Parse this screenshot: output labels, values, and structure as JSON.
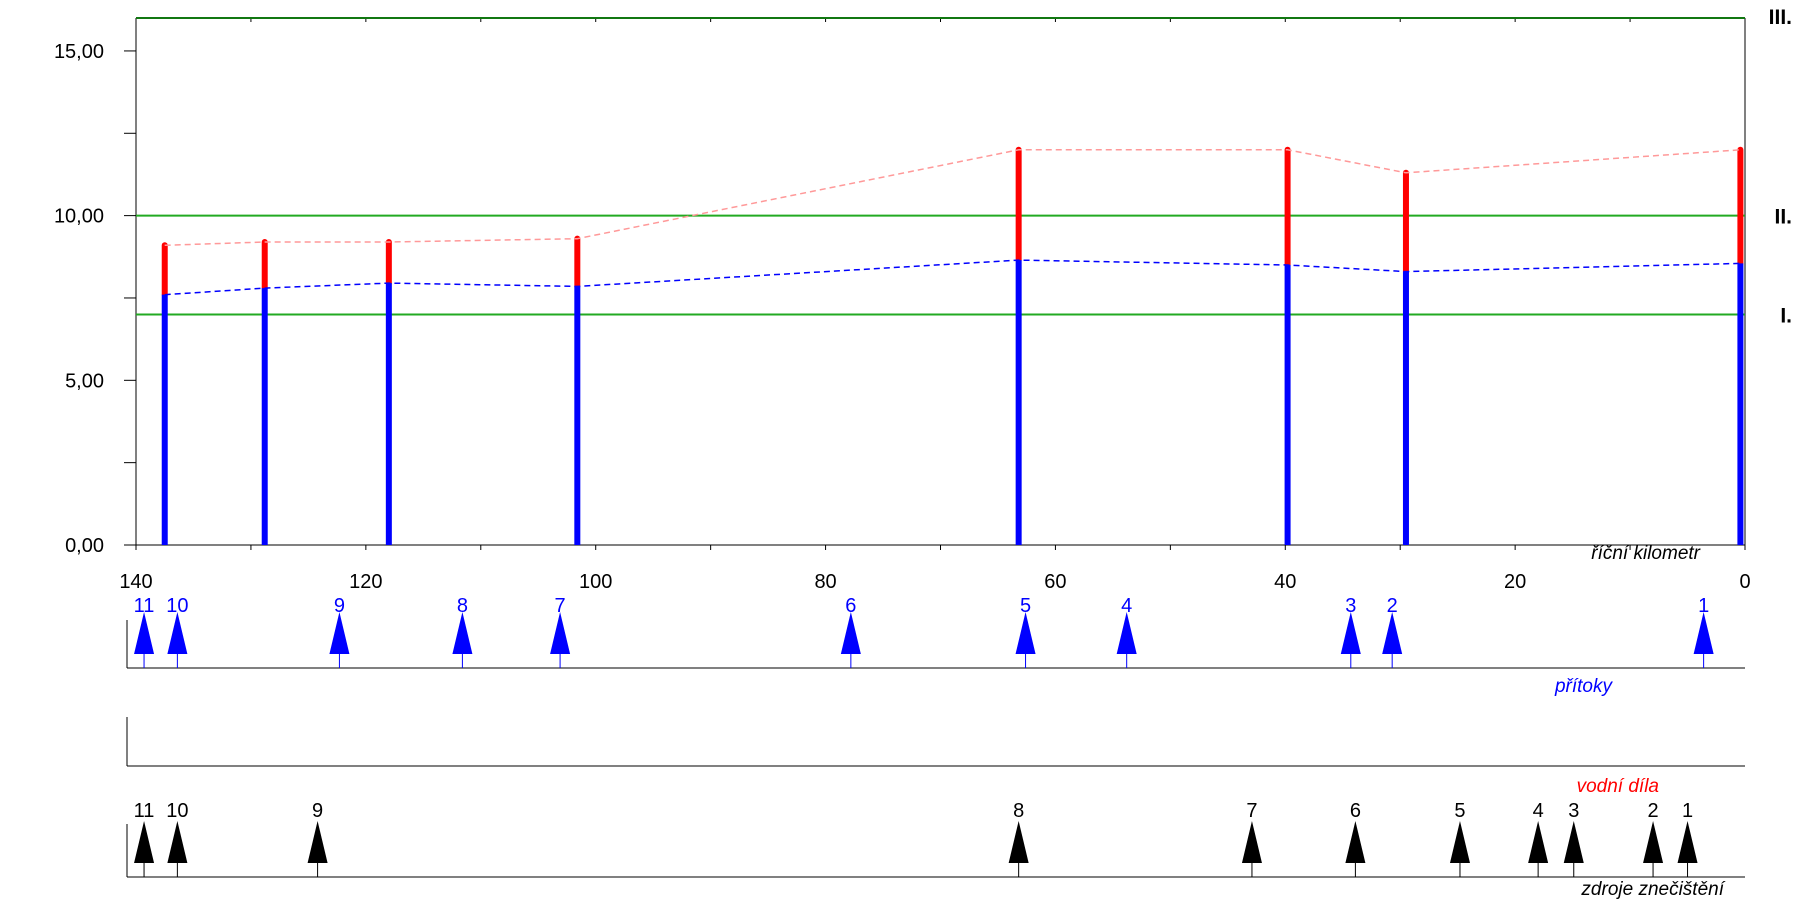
{
  "chart_data": {
    "type": "bar",
    "y_ticks": [
      "0,00",
      "5,00",
      "10,00",
      "15,00"
    ],
    "y_tick_values": [
      0,
      5,
      10,
      15
    ],
    "ylim": [
      0,
      16
    ],
    "x_ticks": [
      "140",
      "120",
      "100",
      "80",
      "60",
      "40",
      "20",
      "0"
    ],
    "x_tick_values": [
      140,
      120,
      100,
      80,
      60,
      40,
      20,
      0
    ],
    "xlim": [
      140,
      0
    ],
    "xlabel": "říční kilometr",
    "ylabel": "",
    "class_limits": [
      {
        "label": "I.",
        "value": 7,
        "color": "#22aa22"
      },
      {
        "label": "II.",
        "value": 10,
        "color": "#22aa22"
      },
      {
        "label": "III.",
        "value": 16,
        "color": "#117711"
      }
    ],
    "series": [
      {
        "color": "#0000ff",
        "points": [
          {
            "km": 137.5,
            "value": 7.6
          },
          {
            "km": 128.8,
            "value": 7.8
          },
          {
            "km": 118.0,
            "value": 7.95
          },
          {
            "km": 101.6,
            "value": 7.85
          },
          {
            "km": 63.2,
            "value": 8.65
          },
          {
            "km": 39.8,
            "value": 8.5
          },
          {
            "km": 29.5,
            "value": 8.3
          },
          {
            "km": 0.4,
            "value": 8.55
          }
        ]
      },
      {
        "color": "#ff0000",
        "points": [
          {
            "km": 137.5,
            "value": 9.1
          },
          {
            "km": 128.8,
            "value": 9.2
          },
          {
            "km": 118.0,
            "value": 9.2
          },
          {
            "km": 101.6,
            "value": 9.3
          },
          {
            "km": 63.2,
            "value": 12.0
          },
          {
            "km": 39.8,
            "value": 12.0
          },
          {
            "km": 29.5,
            "value": 11.3
          },
          {
            "km": 0.4,
            "value": 12.0
          }
        ]
      }
    ],
    "tributaries": {
      "label": "přítoky",
      "color": "#0000ff",
      "items": [
        {
          "num": "1",
          "km": 3.6
        },
        {
          "num": "2",
          "km": 30.7
        },
        {
          "num": "3",
          "km": 34.3
        },
        {
          "num": "4",
          "km": 53.8
        },
        {
          "num": "5",
          "km": 62.6
        },
        {
          "num": "6",
          "km": 77.8
        },
        {
          "num": "7",
          "km": 103.1
        },
        {
          "num": "8",
          "km": 111.6
        },
        {
          "num": "9",
          "km": 122.3
        },
        {
          "num": "10",
          "km": 136.4
        },
        {
          "num": "11",
          "km": 139.3
        }
      ]
    },
    "water_works": {
      "label": "vodní díla",
      "color": "#ff0000",
      "items": []
    },
    "pollution_sources": {
      "label": "zdroje znečištění",
      "color": "#000000",
      "items": [
        {
          "num": "1",
          "km": 5.0
        },
        {
          "num": "2",
          "km": 8.0
        },
        {
          "num": "3",
          "km": 14.9
        },
        {
          "num": "4",
          "km": 18.0
        },
        {
          "num": "5",
          "km": 24.8
        },
        {
          "num": "6",
          "km": 33.9
        },
        {
          "num": "7",
          "km": 42.9
        },
        {
          "num": "8",
          "km": 63.2
        },
        {
          "num": "9",
          "km": 124.2
        },
        {
          "num": "10",
          "km": 136.4
        },
        {
          "num": "11",
          "km": 139.3
        }
      ]
    }
  }
}
